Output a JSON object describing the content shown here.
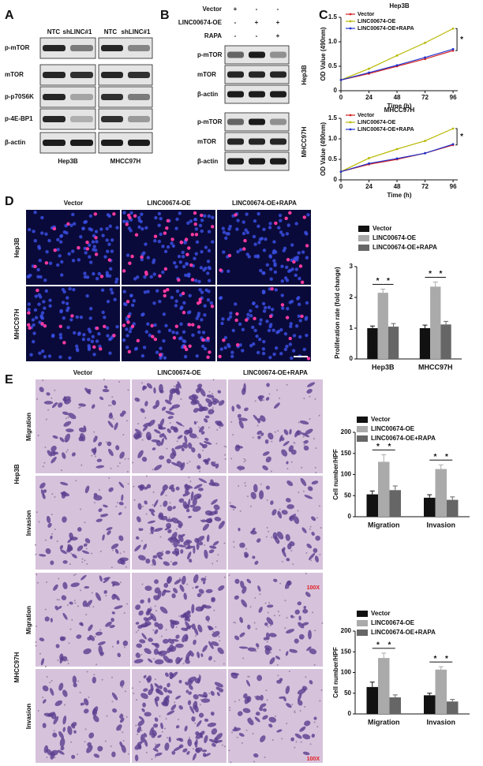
{
  "panel_labels": [
    "A",
    "B",
    "C",
    "D",
    "E"
  ],
  "panel_a": {
    "columns": [
      "NTC",
      "shLINC#1",
      "NTC",
      "shLINC#1"
    ],
    "rows": [
      "p-mTOR",
      "mTOR",
      "p-p70S6K",
      "p-4E-BP1",
      "β-actin"
    ],
    "cell_lines": [
      "Hep3B",
      "MHCC97H"
    ]
  },
  "panel_b": {
    "conditions": [
      {
        "name": "Vector",
        "signs": [
          "+",
          "-",
          "-"
        ]
      },
      {
        "name": "LINC00674-OE",
        "signs": [
          "-",
          "+",
          "+"
        ]
      },
      {
        "name": "RAPA",
        "signs": [
          "-",
          "-",
          "+"
        ]
      }
    ],
    "groups": [
      {
        "cell_line": "Hep3B",
        "rows": [
          "p-mTOR",
          "mTOR",
          "β-actin"
        ]
      },
      {
        "cell_line": "MHCC97H",
        "rows": [
          "p-mTOR",
          "mTOR",
          "β-actin"
        ]
      }
    ]
  },
  "panel_d": {
    "columns": [
      "Vector",
      "LINC00674-OE",
      "LINC00674-OE+RAPA"
    ],
    "rows": [
      "Hep3B",
      "MHCC97H"
    ]
  },
  "panel_e": {
    "columns": [
      "Vector",
      "LINC00674-OE",
      "LINC00674-OE+RAPA"
    ],
    "groups": [
      {
        "cell_line": "Hep3B",
        "rows": [
          "Migration",
          "Invasion"
        ]
      },
      {
        "cell_line": "MHCC97H",
        "rows": [
          "Migration",
          "Invasion"
        ]
      }
    ],
    "scale_labels": [
      "100X",
      "100X"
    ]
  },
  "chart_data": [
    {
      "type": "line",
      "title": "Hep3B",
      "x_label": "Time (h)",
      "y_label": "OD Value (490nm)",
      "x": [
        0,
        24,
        48,
        72,
        96
      ],
      "xlim": [
        0,
        100
      ],
      "xticks": [
        0,
        24,
        48,
        72,
        96
      ],
      "ylim": [
        0,
        1.5
      ],
      "yticks": [
        0,
        0.5,
        {
          "value": 1,
          "label": "1.0"
        },
        1.5
      ],
      "series": [
        {
          "name": "Vector",
          "color": "#d42020",
          "values": [
            0.22,
            0.35,
            0.5,
            0.65,
            0.82
          ]
        },
        {
          "name": "LINC00674-OE",
          "color": "#b8b800",
          "values": [
            0.22,
            0.45,
            0.72,
            0.98,
            1.27
          ]
        },
        {
          "name": "LINC00674-OE+RAPA",
          "color": "#2233cc",
          "values": [
            0.22,
            0.37,
            0.52,
            0.68,
            0.85
          ]
        }
      ],
      "significance": [
        "*"
      ]
    },
    {
      "type": "line",
      "title": "MHCC97H",
      "x_label": "Time (h)",
      "y_label": "OD Value (490nm)",
      "x": [
        0,
        24,
        48,
        72,
        96
      ],
      "xlim": [
        0,
        100
      ],
      "xticks": [
        0,
        24,
        48,
        72,
        96
      ],
      "ylim": [
        0,
        1.5
      ],
      "yticks": [
        0,
        0.5,
        {
          "value": 1,
          "label": "1.0"
        },
        1.5
      ],
      "series": [
        {
          "name": "Vector",
          "color": "#d42020",
          "values": [
            0.2,
            0.38,
            0.5,
            0.65,
            0.85
          ]
        },
        {
          "name": "LINC00674-OE",
          "color": "#b8b800",
          "values": [
            0.2,
            0.53,
            0.75,
            0.95,
            1.25
          ]
        },
        {
          "name": "LINC00674-OE+RAPA",
          "color": "#2233cc",
          "values": [
            0.2,
            0.4,
            0.52,
            0.65,
            0.87
          ]
        }
      ],
      "significance": [
        "*"
      ]
    },
    {
      "type": "bar",
      "y_label": "Proliferation rate (fold change)",
      "categories": [
        "Hep3B",
        "MHCC97H"
      ],
      "ylim": [
        0,
        3
      ],
      "yticks": [
        0,
        1,
        2,
        3
      ],
      "series": [
        {
          "name": "Vector",
          "color": "#111111",
          "values": [
            1.0,
            1.0
          ],
          "errors": [
            0.07,
            0.1
          ]
        },
        {
          "name": "LINC00674-OE",
          "color": "#aaaaaa",
          "values": [
            2.15,
            2.35
          ],
          "errors": [
            0.12,
            0.15
          ]
        },
        {
          "name": "LINC00674-OE+RAPA",
          "color": "#666666",
          "values": [
            1.05,
            1.12
          ],
          "errors": [
            0.1,
            0.1
          ]
        }
      ],
      "significance": [
        "*",
        "*",
        "*",
        "*"
      ]
    },
    {
      "type": "bar",
      "y_label": "Cell number/HPF",
      "categories": [
        "Migration",
        "Invasion"
      ],
      "ylim": [
        0,
        200
      ],
      "yticks": [
        0,
        50,
        100,
        150,
        200
      ],
      "series": [
        {
          "name": "Vector",
          "color": "#111111",
          "values": [
            53,
            45
          ],
          "errors": [
            8,
            7
          ]
        },
        {
          "name": "LINC00674-OE",
          "color": "#aaaaaa",
          "values": [
            130,
            113
          ],
          "errors": [
            17,
            10
          ]
        },
        {
          "name": "LINC00674-OE+RAPA",
          "color": "#666666",
          "values": [
            63,
            40
          ],
          "errors": [
            10,
            7
          ]
        }
      ],
      "significance": [
        "*",
        "*",
        "*",
        "*"
      ]
    },
    {
      "type": "bar",
      "y_label": "Cell number/HPF",
      "categories": [
        "Migration",
        "Invasion"
      ],
      "ylim": [
        0,
        200
      ],
      "yticks": [
        0,
        50,
        100,
        150,
        200
      ],
      "series": [
        {
          "name": "Vector",
          "color": "#111111",
          "values": [
            65,
            45
          ],
          "errors": [
            12,
            5
          ]
        },
        {
          "name": "LINC00674-OE",
          "color": "#aaaaaa",
          "values": [
            135,
            107
          ],
          "errors": [
            12,
            7
          ]
        },
        {
          "name": "LINC00674-OE+RAPA",
          "color": "#666666",
          "values": [
            40,
            30
          ],
          "errors": [
            6,
            5
          ]
        }
      ],
      "significance": [
        "*",
        "*",
        "*",
        "*"
      ]
    }
  ]
}
